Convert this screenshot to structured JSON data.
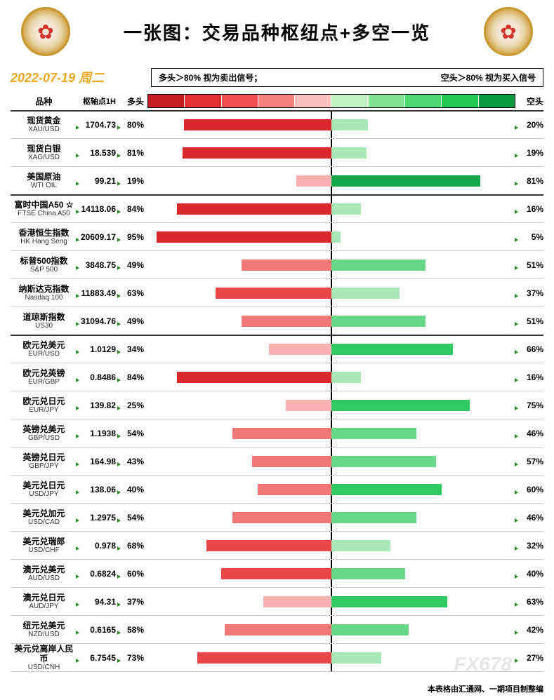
{
  "title": "一张图：交易品种枢纽点+多空一览",
  "date": "2022-07-19  周二",
  "signal_left": "多头＞80%  视为卖出信号；",
  "signal_right": "空头＞80%  视为买入信号",
  "headers": {
    "name": "品种",
    "pivot": "枢轴点1H",
    "bull": "多头",
    "bear": "空头"
  },
  "legend_colors_left": [
    "#c41e1e",
    "#e03030",
    "#f05050",
    "#f58080",
    "#fac0c0"
  ],
  "legend_colors_right": [
    "#c0f0c0",
    "#80e590",
    "#50d870",
    "#20c850",
    "#0a9840"
  ],
  "bar_colors": {
    "red_80": "#d8282a",
    "red_60": "#e84848",
    "red_40": "#f07878",
    "red_20": "#f8b0b0",
    "green_80": "#0fa848",
    "green_60": "#30c860",
    "green_40": "#68d888",
    "green_20": "#a8e8b8"
  },
  "watermark": "FX678",
  "footer": "本表格由汇通网、一期项目制整编",
  "chart_half_width_pct": 50,
  "rows": [
    {
      "name_cn": "现货黄金",
      "name_en": "XAU/USD",
      "pivot": "1704.73",
      "bull": 80,
      "bear": 20,
      "star": false,
      "group_start": true
    },
    {
      "name_cn": "现货白银",
      "name_en": "XAG/USD",
      "pivot": "18.539",
      "bull": 81,
      "bear": 19,
      "star": false
    },
    {
      "name_cn": "美国原油",
      "name_en": "WTI OIL",
      "pivot": "99.21",
      "bull": 19,
      "bear": 81,
      "star": false
    },
    {
      "name_cn": "富时中国A50",
      "name_en": "FTSE China A50",
      "pivot": "14118.06",
      "bull": 84,
      "bear": 16,
      "star": true,
      "group_start": true
    },
    {
      "name_cn": "香港恒生指数",
      "name_en": "HK Hang Seng",
      "pivot": "20609.17",
      "bull": 95,
      "bear": 5,
      "star": false
    },
    {
      "name_cn": "标普500指数",
      "name_en": "S&P 500",
      "pivot": "3848.75",
      "bull": 49,
      "bear": 51,
      "star": false
    },
    {
      "name_cn": "纳斯达克指数",
      "name_en": "Nasdaq 100",
      "pivot": "11883.49",
      "bull": 63,
      "bear": 37,
      "star": false
    },
    {
      "name_cn": "道琼斯指数",
      "name_en": "US30",
      "pivot": "31094.76",
      "bull": 49,
      "bear": 51,
      "star": false
    },
    {
      "name_cn": "欧元兑美元",
      "name_en": "EUR/USD",
      "pivot": "1.0129",
      "bull": 34,
      "bear": 66,
      "star": false,
      "group_start": true
    },
    {
      "name_cn": "欧元兑英镑",
      "name_en": "EUR/GBP",
      "pivot": "0.8486",
      "bull": 84,
      "bear": 16,
      "star": false
    },
    {
      "name_cn": "欧元兑日元",
      "name_en": "EUR/JPY",
      "pivot": "139.82",
      "bull": 25,
      "bear": 75,
      "star": false
    },
    {
      "name_cn": "英镑兑美元",
      "name_en": "GBP/USD",
      "pivot": "1.1938",
      "bull": 54,
      "bear": 46,
      "star": false
    },
    {
      "name_cn": "英镑兑日元",
      "name_en": "GBP/JPY",
      "pivot": "164.98",
      "bull": 43,
      "bear": 57,
      "star": false
    },
    {
      "name_cn": "美元兑日元",
      "name_en": "USD/JPY",
      "pivot": "138.06",
      "bull": 40,
      "bear": 60,
      "star": false
    },
    {
      "name_cn": "美元兑加元",
      "name_en": "USD/CAD",
      "pivot": "1.2975",
      "bull": 54,
      "bear": 46,
      "star": false
    },
    {
      "name_cn": "美元兑瑞郎",
      "name_en": "USD/CHF",
      "pivot": "0.978",
      "bull": 68,
      "bear": 32,
      "star": false
    },
    {
      "name_cn": "澳元兑美元",
      "name_en": "AUD/USD",
      "pivot": "0.6824",
      "bull": 60,
      "bear": 40,
      "star": false
    },
    {
      "name_cn": "澳元兑日元",
      "name_en": "AUD/JPY",
      "pivot": "94.31",
      "bull": 37,
      "bear": 63,
      "star": false
    },
    {
      "name_cn": "纽元兑美元",
      "name_en": "NZD/USD",
      "pivot": "0.6165",
      "bull": 58,
      "bear": 42,
      "star": false
    },
    {
      "name_cn": "美元兑离岸人民币",
      "name_en": "USD/CNH",
      "pivot": "6.7545",
      "bull": 73,
      "bear": 27,
      "star": false
    }
  ]
}
